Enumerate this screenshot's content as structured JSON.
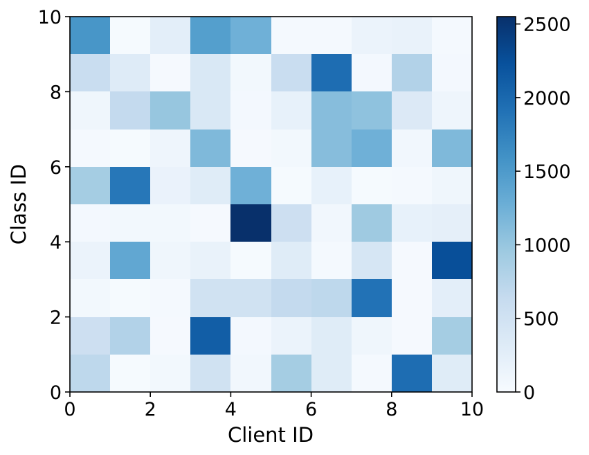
{
  "chart_data": {
    "type": "heatmap",
    "xlabel": "Client ID",
    "ylabel": "Class ID",
    "xlim": [
      0,
      10
    ],
    "ylim": [
      0,
      10
    ],
    "x_ticks": [
      "0",
      "2",
      "4",
      "6",
      "8",
      "10"
    ],
    "y_ticks": [
      "0",
      "2",
      "4",
      "6",
      "8",
      "10"
    ],
    "colormap": "Blues",
    "colorbar": {
      "min": 0,
      "max": 2550,
      "ticks": [
        "0",
        "500",
        "1000",
        "1500",
        "2000",
        "2500"
      ]
    },
    "rows_top_to_bottom": [
      [
        1550,
        20,
        250,
        1450,
        1250,
        40,
        40,
        150,
        180,
        40
      ],
      [
        600,
        320,
        30,
        380,
        60,
        600,
        1950,
        50,
        800,
        50
      ],
      [
        100,
        650,
        1000,
        380,
        50,
        200,
        1100,
        1050,
        350,
        120
      ],
      [
        40,
        20,
        120,
        1150,
        30,
        60,
        1100,
        1250,
        80,
        1150
      ],
      [
        900,
        1850,
        170,
        300,
        1250,
        20,
        200,
        20,
        40,
        100
      ],
      [
        50,
        60,
        60,
        30,
        2550,
        550,
        80,
        950,
        200,
        230
      ],
      [
        150,
        1350,
        100,
        180,
        20,
        300,
        40,
        420,
        30,
        2250
      ],
      [
        60,
        20,
        40,
        500,
        500,
        650,
        700,
        1900,
        30,
        250
      ],
      [
        550,
        800,
        30,
        2100,
        50,
        150,
        300,
        100,
        30,
        900
      ],
      [
        700,
        20,
        60,
        500,
        80,
        900,
        300,
        40,
        1950,
        300
      ]
    ]
  }
}
